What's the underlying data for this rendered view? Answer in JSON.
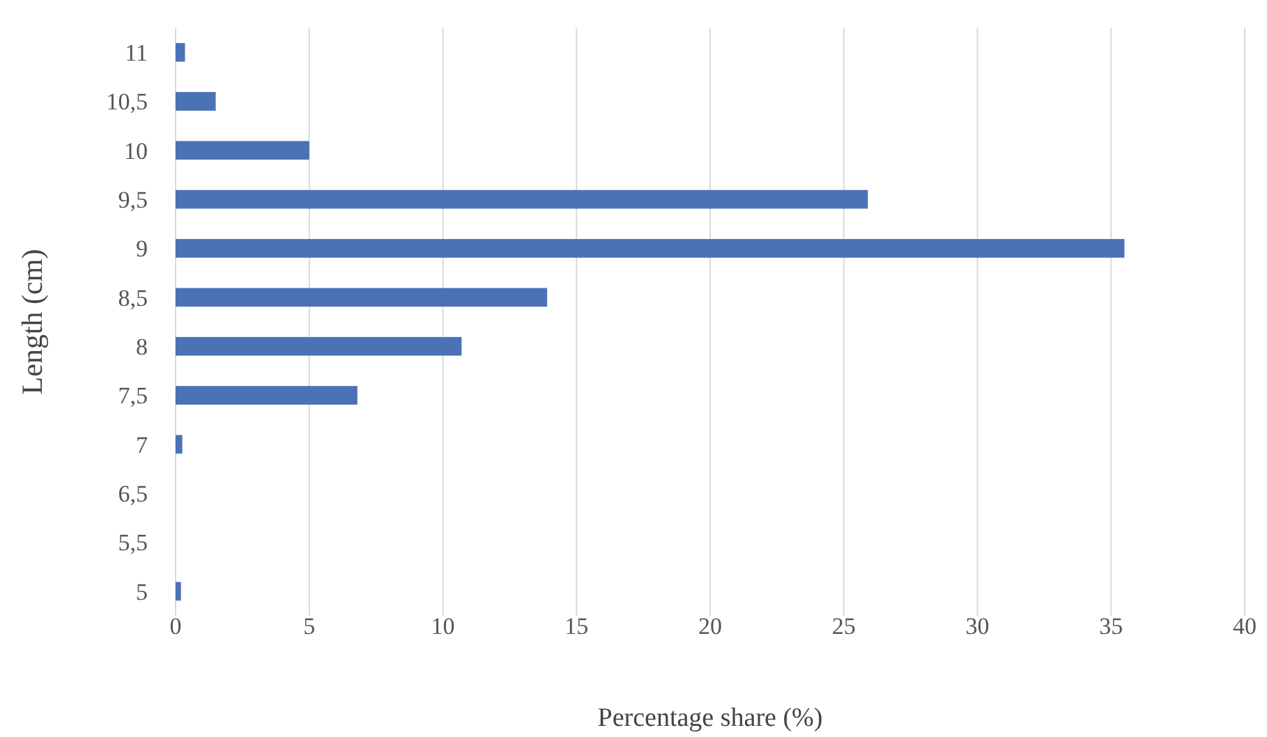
{
  "chart_data": {
    "type": "bar",
    "orientation": "horizontal",
    "xlabel": "Percentage share  (%)",
    "ylabel": "Length (cm)",
    "categories": [
      "11",
      "10,5",
      "10",
      "9,5",
      "9",
      "8,5",
      "8",
      "7,5",
      "7",
      "6,5",
      "5,5",
      "5"
    ],
    "values": [
      0.35,
      1.5,
      5.0,
      25.9,
      35.5,
      13.9,
      10.7,
      6.8,
      0.25,
      0,
      0,
      0.2
    ],
    "color": "#4a72b5",
    "xlim": [
      0,
      40
    ],
    "xticks": [
      0,
      5,
      10,
      15,
      20,
      25,
      30,
      35,
      40
    ],
    "grid": "x"
  }
}
